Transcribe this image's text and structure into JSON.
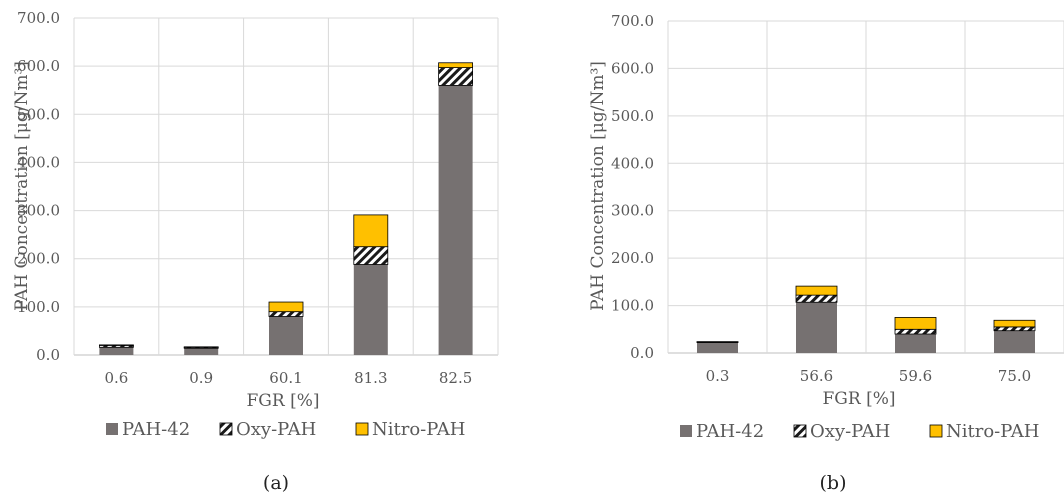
{
  "colors": {
    "PAH-42": "#767171",
    "Oxy-PAH": "hatch",
    "Nitro-PAH": "#ffc000",
    "grid": "#d9d9d9",
    "text": "#595959"
  },
  "chart_data": [
    {
      "type": "bar",
      "stacked": true,
      "caption": "(a)",
      "xlabel": "FGR [%]",
      "ylabel": "PAH Concentration [μg/Nm³]",
      "ylim": [
        0,
        700
      ],
      "yticks": [
        "0.0",
        "100.0",
        "200.0",
        "300.0",
        "400.0",
        "500.0",
        "600.0",
        "700.0"
      ],
      "categories": [
        "0.6",
        "0.9",
        "60.1",
        "81.3",
        "82.5"
      ],
      "series": [
        {
          "name": "PAH-42",
          "values": [
            16,
            14,
            80,
            188,
            560
          ]
        },
        {
          "name": "Oxy-PAH",
          "values": [
            4,
            2,
            10,
            37,
            37
          ]
        },
        {
          "name": "Nitro-PAH",
          "values": [
            1,
            1,
            20,
            66,
            10
          ]
        }
      ],
      "legend": "bottom",
      "grid": true
    },
    {
      "type": "bar",
      "stacked": true,
      "caption": "(b)",
      "xlabel": "FGR [%]",
      "ylabel": "PAH Concentration [μg/Nm³]",
      "ylim": [
        0,
        700
      ],
      "yticks": [
        "0.0",
        "100.0",
        "200.0",
        "300.0",
        "400.0",
        "500.0",
        "600.0",
        "700.0"
      ],
      "categories": [
        "0.3",
        "56.6",
        "59.6",
        "75.0"
      ],
      "series": [
        {
          "name": "PAH-42",
          "values": [
            22,
            107,
            40,
            47
          ]
        },
        {
          "name": "Oxy-PAH",
          "values": [
            1,
            15,
            10,
            8
          ]
        },
        {
          "name": "Nitro-PAH",
          "values": [
            1,
            19,
            25,
            14
          ]
        }
      ],
      "legend": "bottom",
      "grid": true
    }
  ]
}
